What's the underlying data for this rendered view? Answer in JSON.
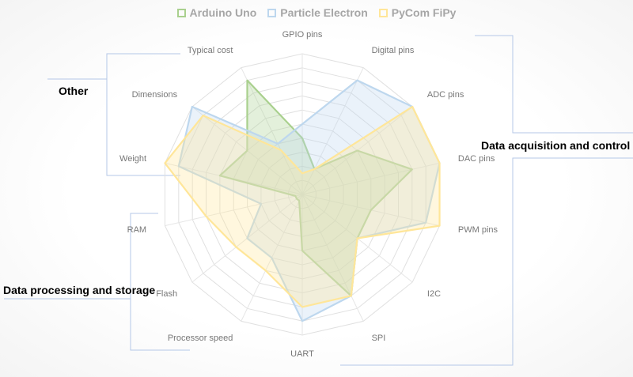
{
  "chart_data": {
    "type": "radar",
    "axes": [
      "GPIO pins",
      "Digital pins",
      "ADC pins",
      "DAC pins",
      "PWM pins",
      "I2C",
      "SPI",
      "UART",
      "Processor speed",
      "Flash",
      "RAM",
      "Weight",
      "Dimensions",
      "Typical cost"
    ],
    "rmax": 10,
    "ring_count": 10,
    "series": [
      {
        "name": "Arduino Uno",
        "color": "#a9d08e",
        "values": [
          4,
          2,
          5,
          8,
          5,
          5,
          8,
          4,
          0.5,
          0.5,
          0.5,
          6,
          5,
          9
        ]
      },
      {
        "name": "Particle Electron",
        "color": "#bdd7ee",
        "values": [
          5,
          9,
          10,
          10,
          9,
          5,
          8,
          9,
          5,
          5,
          3,
          9,
          10,
          4
        ]
      },
      {
        "name": "PyCom FiPy",
        "color": "#ffe699",
        "values": [
          1.5,
          2,
          10,
          10,
          10,
          5,
          8,
          8,
          6,
          6,
          7,
          10,
          9,
          3.5
        ]
      }
    ],
    "legend_position": "top",
    "groups": [
      {
        "name": "Other",
        "axes": [
          "Weight",
          "Dimensions",
          "Typical cost"
        ]
      },
      {
        "name": "Data acquisition and control",
        "axes": [
          "GPIO pins",
          "Digital pins",
          "ADC pins",
          "DAC pins",
          "PWM pins",
          "I2C",
          "SPI",
          "UART"
        ]
      },
      {
        "name": "Data processing and storage",
        "axes": [
          "Processor speed",
          "Flash",
          "RAM"
        ]
      }
    ]
  }
}
